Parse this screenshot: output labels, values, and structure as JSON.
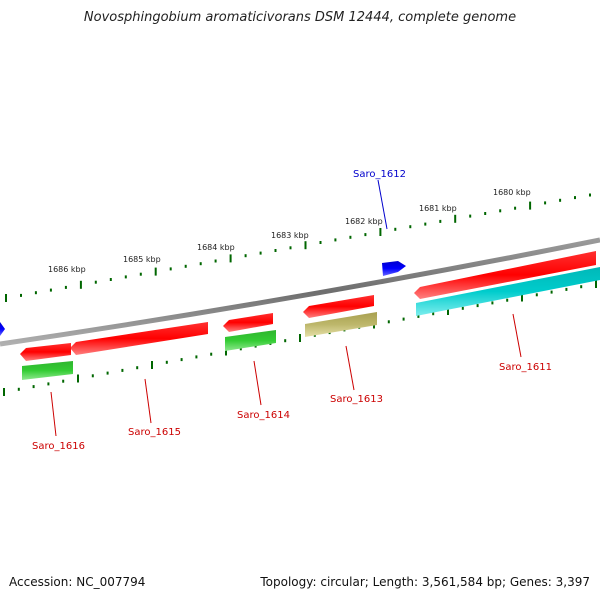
{
  "title": "Novosphingobium aromaticivorans DSM 12444, complete genome",
  "footer": {
    "accession": "Accession: NC_007794",
    "summary": "Topology: circular; Length: 3,561,584 bp; Genes: 3,397"
  },
  "scale_labels": [
    "1680 kbp",
    "1681 kbp",
    "1682 kbp",
    "1683 kbp",
    "1684 kbp",
    "1685 kbp",
    "1686 kbp"
  ],
  "genes": [
    {
      "label": "Saro_1611",
      "color": "#cc0000"
    },
    {
      "label": "Saro_1612",
      "color": "#0000cc"
    },
    {
      "label": "Saro_1613",
      "color": "#cc0000"
    },
    {
      "label": "Saro_1614",
      "color": "#cc0000"
    },
    {
      "label": "Saro_1615",
      "color": "#cc0000"
    },
    {
      "label": "Saro_1616",
      "color": "#cc0000"
    }
  ],
  "colors": {
    "backbone": "#808080",
    "cds": "#ff0000",
    "cds_reverse_blue": "#0000ff",
    "cog_green": "#33cc33",
    "cog_cyan": "#00cccc",
    "cog_khaki": "#bdb76b",
    "ticks": "#006600"
  }
}
